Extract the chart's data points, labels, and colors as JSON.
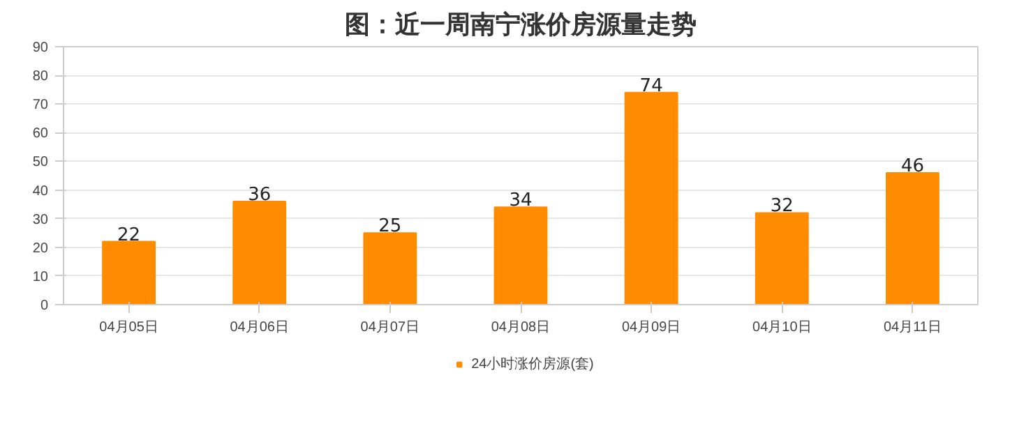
{
  "chart_data": {
    "type": "bar",
    "title": "图：近一周南宁涨价房源量走势",
    "categories": [
      "04月05日",
      "04月06日",
      "04月07日",
      "04月08日",
      "04月09日",
      "04月10日",
      "04月11日"
    ],
    "series": [
      {
        "name": "24小时涨价房源(套)",
        "color": "#ff8c00",
        "values": [
          22,
          36,
          25,
          34,
          74,
          32,
          46
        ]
      }
    ],
    "ylim": [
      0,
      90
    ],
    "yticks": [
      0,
      10,
      20,
      30,
      40,
      50,
      60,
      70,
      80,
      90
    ],
    "grid": "y",
    "legend": "bottom",
    "data_labels": true
  }
}
